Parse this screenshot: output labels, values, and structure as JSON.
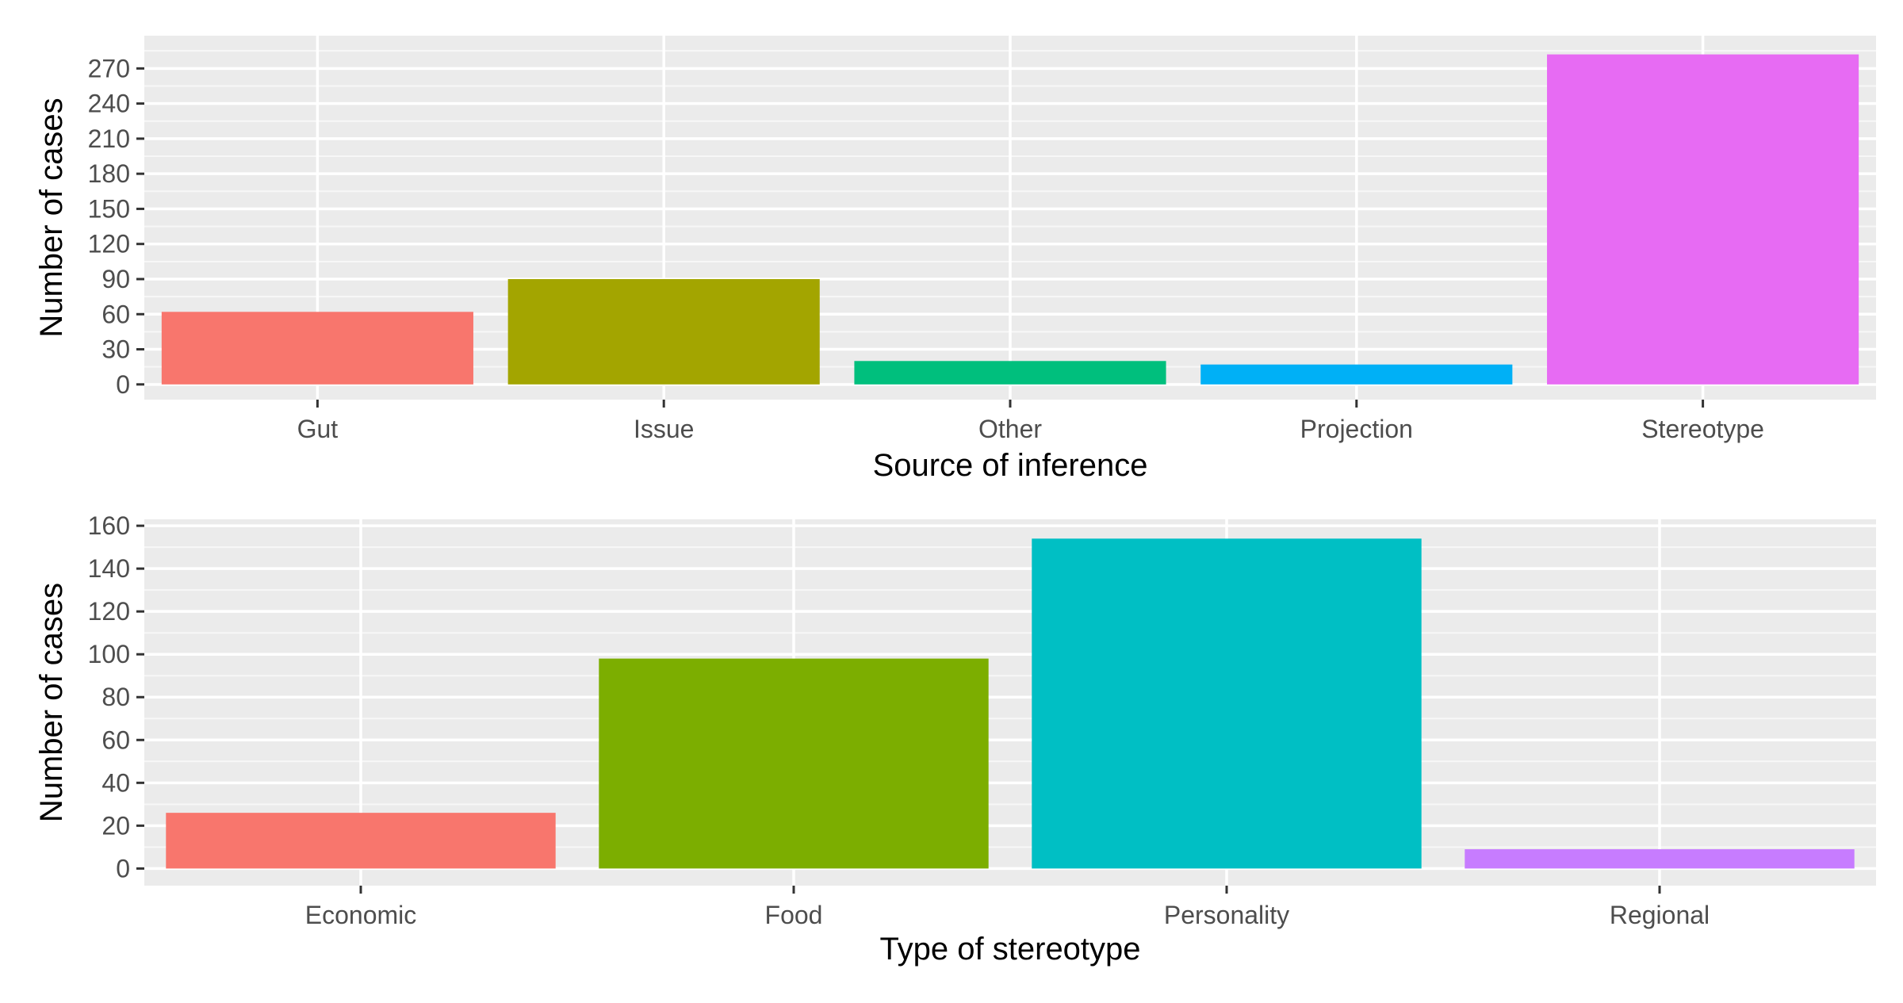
{
  "chart_data": [
    {
      "type": "bar",
      "xlabel": "Source of inference",
      "ylabel": "Number of cases",
      "categories": [
        "Gut",
        "Issue",
        "Other",
        "Projection",
        "Stereotype"
      ],
      "values": [
        62,
        90,
        20,
        17,
        282
      ],
      "colors": [
        "#F8766D",
        "#A3A500",
        "#00BF7D",
        "#00B0F6",
        "#E76BF3"
      ],
      "ylim": [
        -13,
        298
      ],
      "yticks": [
        0,
        30,
        60,
        90,
        120,
        150,
        180,
        210,
        240,
        270
      ],
      "grid": true,
      "legend": "none"
    },
    {
      "type": "bar",
      "xlabel": "Type of stereotype",
      "ylabel": "Number of cases",
      "categories": [
        "Economic",
        "Food",
        "Personality",
        "Regional"
      ],
      "values": [
        26,
        98,
        154,
        9
      ],
      "colors": [
        "#F8766D",
        "#7CAE00",
        "#00BFC4",
        "#C77CFF"
      ],
      "ylim": [
        -8,
        163
      ],
      "yticks": [
        0,
        20,
        40,
        60,
        80,
        100,
        120,
        140,
        160
      ],
      "grid": true,
      "legend": "none"
    }
  ]
}
